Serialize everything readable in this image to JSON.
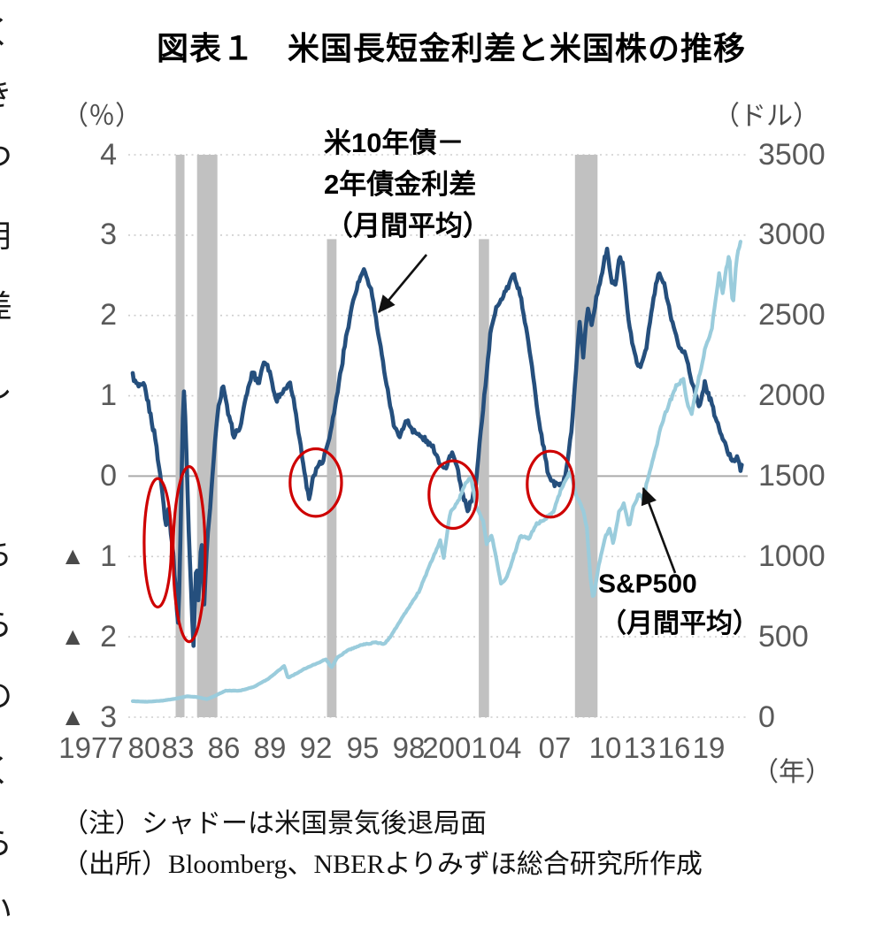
{
  "page": {
    "edge_fragments": [
      "く",
      "き",
      "つ",
      "用",
      "差",
      "し",
      "ち",
      "ら",
      "の",
      "く",
      "ら",
      "い"
    ]
  },
  "title": "図表１　米国長短金利差と米国株の推移",
  "axes": {
    "left_unit": "（％）",
    "right_unit": "（ドル）",
    "x_unit": "（年）",
    "left_ticks": [
      "4",
      "3",
      "2",
      "1",
      "0",
      "▲1",
      "▲2",
      "▲3"
    ],
    "right_ticks": [
      "3500",
      "3000",
      "2500",
      "2000",
      "1500",
      "1000",
      "500",
      "0"
    ],
    "x_ticks": [
      "1977",
      "80",
      "83",
      "86",
      "89",
      "92",
      "95",
      "98",
      "2001",
      "04",
      "07",
      "10",
      "13",
      "16",
      "19"
    ]
  },
  "annotations": {
    "spread": {
      "line1": "米10年債－",
      "line2": "2年債金利差",
      "line3": "（月間平均）"
    },
    "sp500": {
      "line1": "S&P500",
      "line2": "（月間平均）"
    }
  },
  "notes": {
    "note1": "（注）シャドーは米国景気後退局面",
    "note2": "（出所）Bloomberg、NBERよりみずほ総合研究所作成"
  },
  "colors": {
    "spread_line": "#254F7D",
    "sp500_line": "#9ACCDC",
    "recession_band": "#C1C1C1",
    "gridline": "#CDCDCD",
    "zero_line": "#ABABAB",
    "highlight": "#CE0000",
    "annotation_arrow": "#111111",
    "axis_text": "#595959"
  },
  "chart_data": {
    "type": "line",
    "title": "図表１　米国長短金利差と米国株の推移",
    "x_axis": {
      "label": "（年）",
      "min": 1977,
      "max": 2020,
      "tick_labels": [
        "1977",
        "80",
        "83",
        "86",
        "89",
        "92",
        "95",
        "98",
        "2001",
        "04",
        "07",
        "10",
        "13",
        "16",
        "19"
      ]
    },
    "left_axis": {
      "label": "（％）",
      "min": -3,
      "max": 4,
      "negative_prefix": "▲",
      "series": "米10年債－2年債金利差（月間平均）"
    },
    "right_axis": {
      "label": "（ドル）",
      "min": 0,
      "max": 3500,
      "series": "S&P500（月間平均）"
    },
    "grid": "horizontal-dotted",
    "note": "シャドーは米国景気後退局面",
    "source": "Bloomberg、NBERよりみずほ総合研究所作成",
    "series": [
      {
        "name": "米10年債－2年債金利差（月間平均）",
        "axis": "left",
        "unit": "%",
        "color": "#254F7D",
        "points": [
          [
            1977.0,
            1.25
          ],
          [
            1977.4,
            1.1
          ],
          [
            1977.8,
            1.15
          ],
          [
            1978.2,
            0.8
          ],
          [
            1978.6,
            0.45
          ],
          [
            1979.0,
            -0.1
          ],
          [
            1979.3,
            -0.6
          ],
          [
            1979.5,
            -0.4
          ],
          [
            1979.8,
            -0.9
          ],
          [
            1980.0,
            -1.4
          ],
          [
            1980.2,
            -1.9
          ],
          [
            1980.4,
            -0.2
          ],
          [
            1980.55,
            1.2
          ],
          [
            1980.7,
            0.6
          ],
          [
            1980.9,
            -0.6
          ],
          [
            1981.1,
            -1.5
          ],
          [
            1981.25,
            -2.1
          ],
          [
            1981.45,
            -1.0
          ],
          [
            1981.6,
            -1.6
          ],
          [
            1981.8,
            -0.7
          ],
          [
            1982.0,
            -1.6
          ],
          [
            1982.2,
            -0.8
          ],
          [
            1982.45,
            -0.35
          ],
          [
            1982.7,
            0.35
          ],
          [
            1983.0,
            0.85
          ],
          [
            1983.3,
            1.15
          ],
          [
            1983.7,
            0.75
          ],
          [
            1984.1,
            0.5
          ],
          [
            1984.5,
            0.6
          ],
          [
            1985.0,
            1.05
          ],
          [
            1985.4,
            1.3
          ],
          [
            1985.8,
            1.15
          ],
          [
            1986.2,
            1.45
          ],
          [
            1986.6,
            1.3
          ],
          [
            1987.0,
            0.95
          ],
          [
            1987.5,
            1.05
          ],
          [
            1988.0,
            1.15
          ],
          [
            1988.4,
            0.8
          ],
          [
            1988.8,
            0.3
          ],
          [
            1989.1,
            -0.05
          ],
          [
            1989.35,
            -0.3
          ],
          [
            1989.6,
            0.0
          ],
          [
            1989.9,
            0.12
          ],
          [
            1990.3,
            0.2
          ],
          [
            1990.7,
            0.45
          ],
          [
            1991.1,
            0.8
          ],
          [
            1991.5,
            1.25
          ],
          [
            1991.9,
            1.7
          ],
          [
            1992.3,
            2.1
          ],
          [
            1992.7,
            2.35
          ],
          [
            1993.0,
            2.5
          ],
          [
            1993.2,
            2.55
          ],
          [
            1993.7,
            2.3
          ],
          [
            1994.1,
            1.85
          ],
          [
            1994.5,
            1.4
          ],
          [
            1994.9,
            1.0
          ],
          [
            1995.3,
            0.6
          ],
          [
            1995.7,
            0.5
          ],
          [
            1996.1,
            0.7
          ],
          [
            1996.5,
            0.6
          ],
          [
            1997.0,
            0.5
          ],
          [
            1997.5,
            0.45
          ],
          [
            1998.0,
            0.35
          ],
          [
            1998.5,
            0.15
          ],
          [
            1998.9,
            0.1
          ],
          [
            1999.3,
            0.3
          ],
          [
            1999.7,
            0.1
          ],
          [
            2000.0,
            -0.2
          ],
          [
            2000.4,
            -0.42
          ],
          [
            2000.7,
            -0.3
          ],
          [
            2001.0,
            -0.1
          ],
          [
            2001.3,
            0.5
          ],
          [
            2001.7,
            1.2
          ],
          [
            2002.0,
            1.75
          ],
          [
            2002.4,
            2.1
          ],
          [
            2002.8,
            2.2
          ],
          [
            2003.2,
            2.35
          ],
          [
            2003.6,
            2.5
          ],
          [
            2004.0,
            2.35
          ],
          [
            2004.4,
            1.95
          ],
          [
            2004.8,
            1.5
          ],
          [
            2005.2,
            0.95
          ],
          [
            2005.6,
            0.5
          ],
          [
            2006.0,
            0.05
          ],
          [
            2006.4,
            -0.08
          ],
          [
            2006.8,
            -0.12
          ],
          [
            2007.1,
            -0.1
          ],
          [
            2007.4,
            0.15
          ],
          [
            2007.7,
            0.6
          ],
          [
            2008.0,
            1.3
          ],
          [
            2008.25,
            1.95
          ],
          [
            2008.5,
            1.5
          ],
          [
            2008.8,
            2.1
          ],
          [
            2009.1,
            1.9
          ],
          [
            2009.5,
            2.3
          ],
          [
            2009.9,
            2.6
          ],
          [
            2010.15,
            2.85
          ],
          [
            2010.5,
            2.4
          ],
          [
            2010.8,
            2.4
          ],
          [
            2011.05,
            2.75
          ],
          [
            2011.3,
            2.6
          ],
          [
            2011.7,
            1.9
          ],
          [
            2012.1,
            1.5
          ],
          [
            2012.5,
            1.35
          ],
          [
            2012.9,
            1.6
          ],
          [
            2013.4,
            2.2
          ],
          [
            2013.8,
            2.55
          ],
          [
            2014.2,
            2.35
          ],
          [
            2014.7,
            1.95
          ],
          [
            2015.2,
            1.6
          ],
          [
            2015.7,
            1.5
          ],
          [
            2016.2,
            1.1
          ],
          [
            2016.6,
            0.85
          ],
          [
            2017.0,
            1.15
          ],
          [
            2017.4,
            0.95
          ],
          [
            2017.8,
            0.7
          ],
          [
            2018.2,
            0.5
          ],
          [
            2018.6,
            0.3
          ],
          [
            2019.0,
            0.18
          ],
          [
            2019.3,
            0.25
          ],
          [
            2019.5,
            0.1
          ],
          [
            2019.6,
            0.15
          ]
        ]
      },
      {
        "name": "S&P500（月間平均）",
        "axis": "right",
        "unit": "ドル",
        "color": "#9ACCDC",
        "points": [
          [
            1977.0,
            100
          ],
          [
            1978.0,
            96
          ],
          [
            1979.0,
            102
          ],
          [
            1980.0,
            115
          ],
          [
            1980.8,
            130
          ],
          [
            1981.5,
            125
          ],
          [
            1982.2,
            112
          ],
          [
            1982.8,
            135
          ],
          [
            1983.5,
            165
          ],
          [
            1984.5,
            165
          ],
          [
            1985.5,
            190
          ],
          [
            1986.5,
            240
          ],
          [
            1987.6,
            320
          ],
          [
            1987.85,
            245
          ],
          [
            1988.3,
            265
          ],
          [
            1989.0,
            300
          ],
          [
            1990.0,
            340
          ],
          [
            1990.5,
            360
          ],
          [
            1990.9,
            310
          ],
          [
            1991.3,
            370
          ],
          [
            1992.0,
            415
          ],
          [
            1993.0,
            450
          ],
          [
            1994.0,
            465
          ],
          [
            1994.6,
            455
          ],
          [
            1995.0,
            500
          ],
          [
            1996.0,
            640
          ],
          [
            1997.0,
            780
          ],
          [
            1997.8,
            950
          ],
          [
            1998.5,
            1100
          ],
          [
            1998.75,
            990
          ],
          [
            1999.2,
            1280
          ],
          [
            1999.7,
            1330
          ],
          [
            2000.2,
            1440
          ],
          [
            2000.65,
            1495
          ],
          [
            2001.0,
            1320
          ],
          [
            2001.5,
            1220
          ],
          [
            2001.75,
            1080
          ],
          [
            2002.1,
            1130
          ],
          [
            2002.4,
            1000
          ],
          [
            2002.75,
            830
          ],
          [
            2003.1,
            860
          ],
          [
            2003.6,
            990
          ],
          [
            2004.1,
            1130
          ],
          [
            2004.7,
            1110
          ],
          [
            2005.2,
            1200
          ],
          [
            2005.8,
            1230
          ],
          [
            2006.4,
            1280
          ],
          [
            2007.0,
            1430
          ],
          [
            2007.6,
            1530
          ],
          [
            2008.0,
            1380
          ],
          [
            2008.5,
            1290
          ],
          [
            2008.75,
            1180
          ],
          [
            2009.0,
            870
          ],
          [
            2009.2,
            735
          ],
          [
            2009.6,
            950
          ],
          [
            2010.0,
            1110
          ],
          [
            2010.35,
            1180
          ],
          [
            2010.6,
            1080
          ],
          [
            2011.0,
            1280
          ],
          [
            2011.35,
            1330
          ],
          [
            2011.7,
            1180
          ],
          [
            2012.0,
            1310
          ],
          [
            2012.4,
            1390
          ],
          [
            2012.7,
            1360
          ],
          [
            2013.0,
            1480
          ],
          [
            2013.5,
            1640
          ],
          [
            2014.0,
            1830
          ],
          [
            2014.5,
            1950
          ],
          [
            2015.0,
            2060
          ],
          [
            2015.5,
            2100
          ],
          [
            2015.8,
            1950
          ],
          [
            2016.1,
            1890
          ],
          [
            2016.5,
            2080
          ],
          [
            2017.0,
            2280
          ],
          [
            2017.5,
            2430
          ],
          [
            2018.0,
            2750
          ],
          [
            2018.25,
            2650
          ],
          [
            2018.7,
            2890
          ],
          [
            2018.95,
            2550
          ],
          [
            2019.2,
            2830
          ],
          [
            2019.4,
            2920
          ],
          [
            2019.55,
            2990
          ]
        ]
      }
    ],
    "recession_bands": [
      {
        "start": 1980.0,
        "end": 1980.62,
        "top_pct": 4
      },
      {
        "start": 1981.5,
        "end": 1982.92,
        "top_pct": 4
      },
      {
        "start": 1990.58,
        "end": 1991.25,
        "top_pct": 2.95
      },
      {
        "start": 2001.2,
        "end": 2001.92,
        "top_pct": 2.95
      },
      {
        "start": 2007.92,
        "end": 2009.5,
        "top_pct": 4
      }
    ],
    "highlight_ellipses": [
      {
        "cx": 1978.75,
        "cy": -0.83,
        "rx": 0.95,
        "ry": 0.8
      },
      {
        "cx": 1980.95,
        "cy": -0.97,
        "rx": 1.12,
        "ry": 1.09
      },
      {
        "cx": 1989.8,
        "cy": -0.08,
        "rx": 1.8,
        "ry": 0.42
      },
      {
        "cx": 1999.4,
        "cy": -0.23,
        "rx": 1.68,
        "ry": 0.42
      },
      {
        "cx": 2006.2,
        "cy": -0.1,
        "rx": 1.62,
        "ry": 0.41
      }
    ]
  }
}
